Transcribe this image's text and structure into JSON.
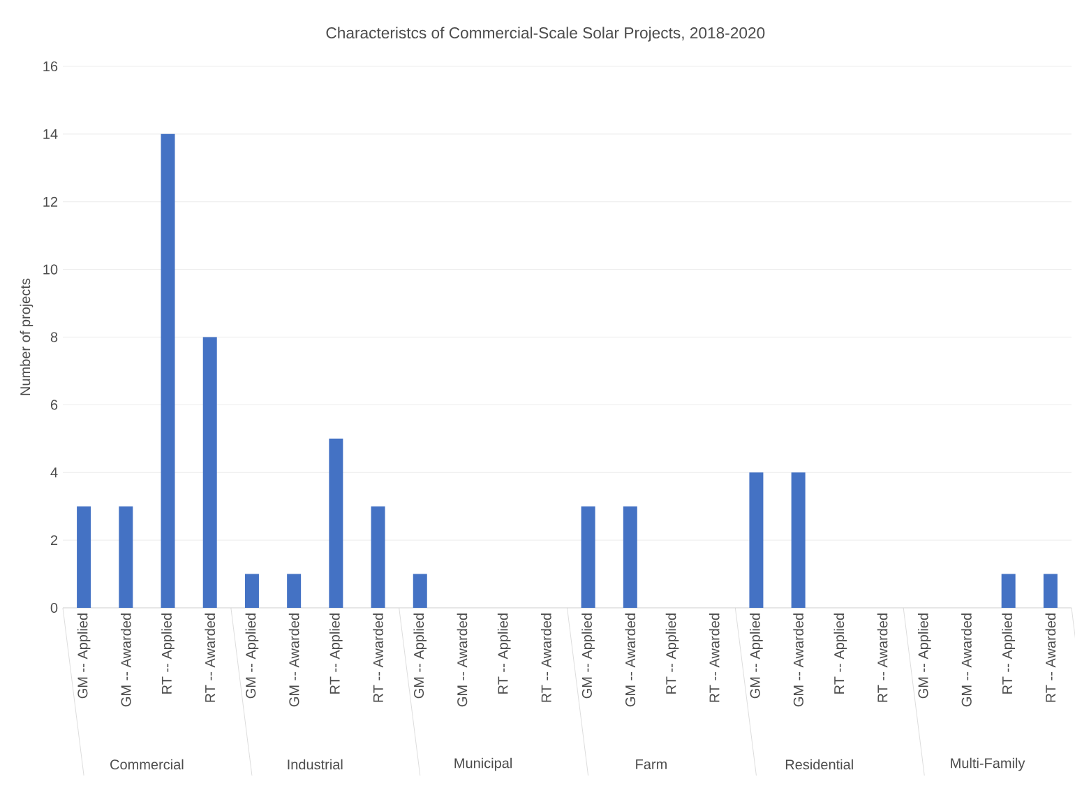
{
  "chart_data": {
    "type": "bar",
    "title": "Characteristcs of Commercial-Scale Solar Projects, 2018-2020",
    "ylabel": "Number of projects",
    "categories": [
      "GM -- Applied",
      "GM -- Awarded",
      "RT -- Applied",
      "RT -- Awarded",
      "GM -- Applied",
      "GM -- Awarded",
      "RT -- Applied",
      "RT -- Awarded",
      "GM -- Applied",
      "GM -- Awarded",
      "RT -- Applied",
      "RT -- Awarded",
      "GM -- Applied",
      "GM -- Awarded",
      "RT -- Applied",
      "RT -- Awarded",
      "GM -- Applied",
      "GM -- Awarded",
      "RT -- Applied",
      "RT -- Awarded",
      "GM -- Applied",
      "GM -- Awarded",
      "RT -- Applied",
      "RT -- Awarded"
    ],
    "annotations": [
      "Commercial",
      "Industrial",
      "Municipal",
      "Farm",
      "Residential",
      "Multi-Family"
    ],
    "values": [
      3,
      3,
      14,
      8,
      1,
      1,
      5,
      3,
      1,
      0,
      0,
      0,
      3,
      3,
      0,
      0,
      4,
      4,
      0,
      0,
      0,
      0,
      1,
      1
    ],
    "color": "#4472c4",
    "ylim": [
      0,
      16
    ],
    "yticks": [
      0,
      2,
      4,
      6,
      8,
      10,
      12,
      14,
      16
    ],
    "grid": "y"
  }
}
